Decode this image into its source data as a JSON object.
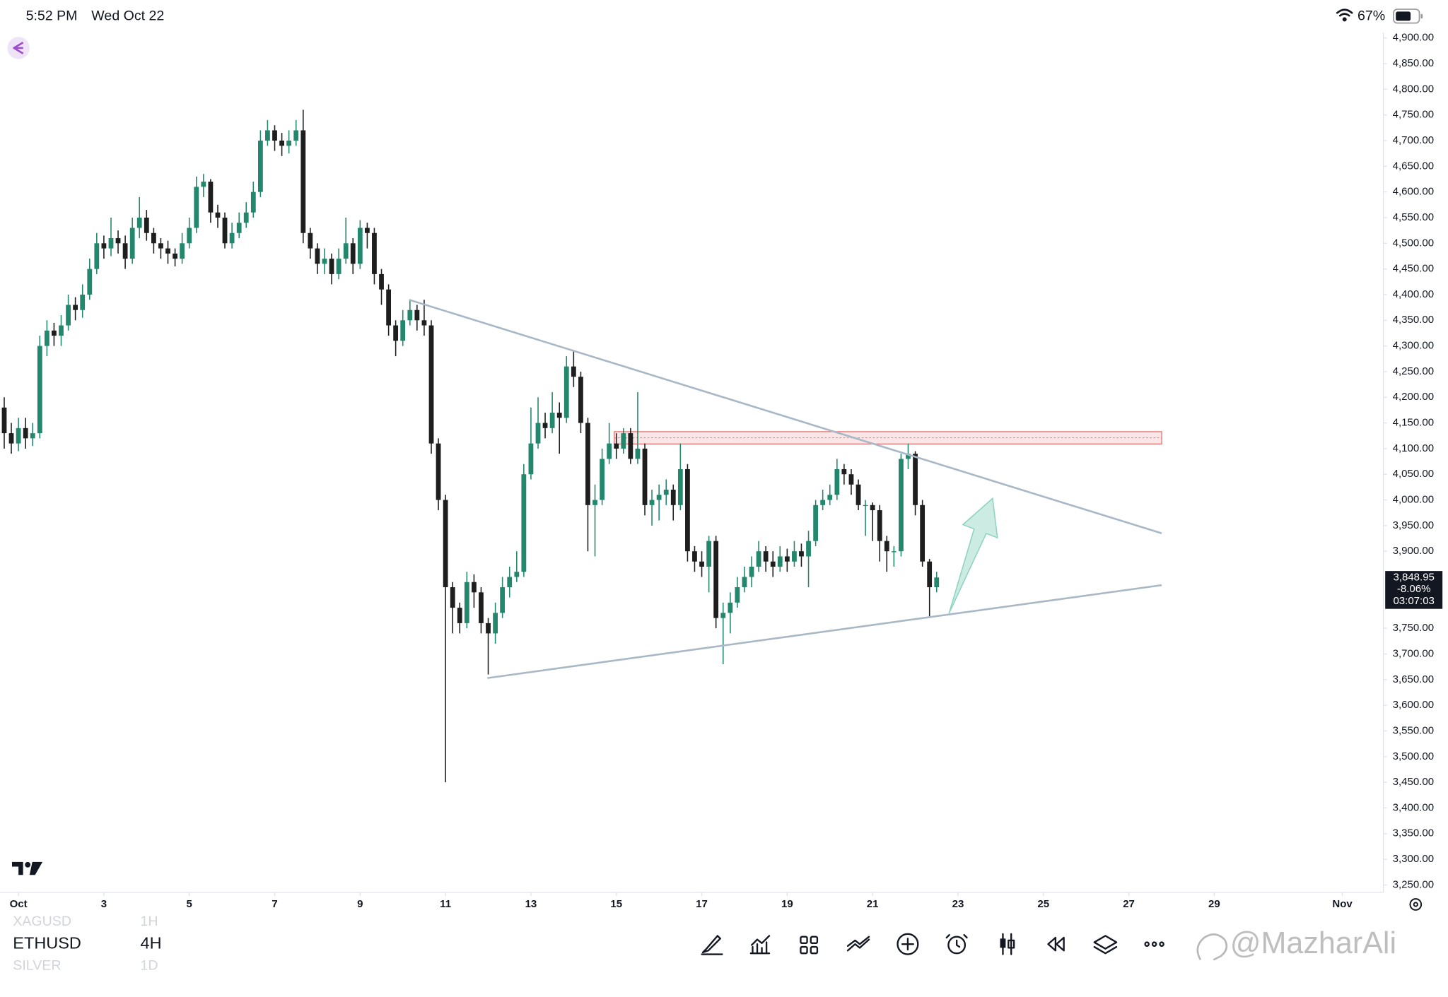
{
  "status_bar": {
    "time": "5:52 PM",
    "date": "Wed Oct 22",
    "battery": "67%"
  },
  "watchlist": [
    {
      "symbol": "XAGUSD",
      "interval": "1H"
    },
    {
      "symbol": "ETHUSD",
      "interval": "4H"
    },
    {
      "symbol": "SILVER",
      "interval": "1D"
    }
  ],
  "watermark": "@MazharAli",
  "chart_data": {
    "type": "candlestick",
    "up_color": "#22876c",
    "down_color": "#1e1e1e",
    "grid": false,
    "xlim": [
      0.568,
      32.96
    ],
    "xticks": [
      {
        "value": 1,
        "label": "Oct"
      },
      3,
      5,
      7,
      9,
      11,
      13,
      15,
      17,
      19,
      21,
      23,
      25,
      27,
      29,
      {
        "value": 32,
        "label": "Nov"
      }
    ],
    "ylim": [
      3239,
      4911
    ],
    "yticks": [
      {
        "value": 4900,
        "label": "4,900.00"
      },
      {
        "value": 4850,
        "label": "4,850.00"
      },
      {
        "value": 4800,
        "label": "4,800.00"
      },
      {
        "value": 4750,
        "label": "4,750.00"
      },
      {
        "value": 4700,
        "label": "4,700.00"
      },
      {
        "value": 4650,
        "label": "4,650.00"
      },
      {
        "value": 4600,
        "label": "4,600.00"
      },
      {
        "value": 4550,
        "label": "4,550.00"
      },
      {
        "value": 4500,
        "label": "4,500.00"
      },
      {
        "value": 4450,
        "label": "4,450.00"
      },
      {
        "value": 4400,
        "label": "4,400.00"
      },
      {
        "value": 4350,
        "label": "4,350.00"
      },
      {
        "value": 4300,
        "label": "4,300.00"
      },
      {
        "value": 4250,
        "label": "4,250.00"
      },
      {
        "value": 4200,
        "label": "4,200.00"
      },
      {
        "value": 4150,
        "label": "4,150.00"
      },
      {
        "value": 4100,
        "label": "4,100.00"
      },
      {
        "value": 4050,
        "label": "4,050.00"
      },
      {
        "value": 4000,
        "label": "4,000.00"
      },
      {
        "value": 3950,
        "label": "3,950.00"
      },
      {
        "value": 3900,
        "label": "3,900.00"
      },
      {
        "value": 3750,
        "label": "3,750.00"
      },
      {
        "value": 3700,
        "label": "3,700.00"
      },
      {
        "value": 3650,
        "label": "3,650.00"
      },
      {
        "value": 3600,
        "label": "3,600.00"
      },
      {
        "value": 3550,
        "label": "3,550.00"
      },
      {
        "value": 3500,
        "label": "3,500.00"
      },
      {
        "value": 3450,
        "label": "3,450.00"
      },
      {
        "value": 3400,
        "label": "3,400.00"
      },
      {
        "value": 3350,
        "label": "3,350.00"
      },
      {
        "value": 3300,
        "label": "3,300.00"
      },
      {
        "value": 3250,
        "label": "3,250.00"
      }
    ],
    "x": [
      0.667,
      0.833,
      1,
      1.167,
      1.333,
      1.5,
      1.667,
      1.833,
      2,
      2.167,
      2.333,
      2.5,
      2.667,
      2.833,
      3,
      3.167,
      3.333,
      3.5,
      3.667,
      3.833,
      4,
      4.167,
      4.333,
      4.5,
      4.667,
      4.833,
      5,
      5.167,
      5.333,
      5.5,
      5.667,
      5.833,
      6,
      6.167,
      6.333,
      6.5,
      6.667,
      6.833,
      7,
      7.167,
      7.333,
      7.5,
      7.667,
      7.833,
      8,
      8.167,
      8.333,
      8.5,
      8.667,
      8.833,
      9,
      9.167,
      9.333,
      9.5,
      9.667,
      9.833,
      10,
      10.167,
      10.333,
      10.5,
      10.667,
      10.833,
      11,
      11.167,
      11.333,
      11.5,
      11.667,
      11.833,
      12,
      12.167,
      12.333,
      12.5,
      12.667,
      12.833,
      13,
      13.167,
      13.333,
      13.5,
      13.667,
      13.833,
      14,
      14.167,
      14.333,
      14.5,
      14.667,
      14.833,
      15,
      15.167,
      15.333,
      15.5,
      15.667,
      15.833,
      16,
      16.167,
      16.333,
      16.5,
      16.667,
      16.833,
      17,
      17.167,
      17.333,
      17.5,
      17.667,
      17.833,
      18,
      18.167,
      18.333,
      18.5,
      18.667,
      18.833,
      19,
      19.167,
      19.333,
      19.5,
      19.667,
      19.833,
      20,
      20.167,
      20.333,
      20.5,
      20.667,
      20.833,
      21,
      21.167,
      21.333,
      21.5,
      21.667,
      21.833,
      22,
      22.167,
      22.333,
      22.5
    ],
    "open": [
      4180,
      4130,
      4110,
      4140,
      4120,
      4130,
      4300,
      4330,
      4320,
      4340,
      4380,
      4370,
      4400,
      4450,
      4500,
      4490,
      4510,
      4500,
      4470,
      4530,
      4550,
      4520,
      4500,
      4490,
      4480,
      4470,
      4500,
      4530,
      4610,
      4620,
      4560,
      4550,
      4500,
      4520,
      4540,
      4560,
      4600,
      4700,
      4720,
      4700,
      4690,
      4700,
      4720,
      4520,
      4490,
      4460,
      4470,
      4440,
      4470,
      4500,
      4460,
      4530,
      4520,
      4440,
      4410,
      4340,
      4310,
      4350,
      4370,
      4350,
      4340,
      4110,
      4000,
      3830,
      3790,
      3760,
      3840,
      3820,
      3760,
      3740,
      3780,
      3830,
      3850,
      3860,
      4050,
      4110,
      4150,
      4140,
      4170,
      4160,
      4260,
      4240,
      4150,
      3990,
      4000,
      4080,
      4110,
      4100,
      4130,
      4080,
      4100,
      3990,
      4000,
      4010,
      4020,
      3990,
      4060,
      3900,
      3880,
      3870,
      3920,
      3770,
      3780,
      3800,
      3830,
      3850,
      3870,
      3900,
      3880,
      3870,
      3890,
      3880,
      3900,
      3890,
      3920,
      3990,
      4000,
      4010,
      4060,
      4050,
      4030,
      3990,
      3990,
      3980,
      3920,
      3900,
      3900,
      4080,
      4090,
      3990,
      3880,
      3830
    ],
    "high": [
      4200,
      4150,
      4160,
      4160,
      4150,
      4320,
      4350,
      4345,
      4360,
      4400,
      4395,
      4420,
      4470,
      4520,
      4515,
      4550,
      4525,
      4515,
      4550,
      4590,
      4565,
      4530,
      4510,
      4505,
      4490,
      4520,
      4550,
      4630,
      4635,
      4625,
      4575,
      4560,
      4540,
      4560,
      4580,
      4620,
      4720,
      4740,
      4730,
      4715,
      4720,
      4740,
      4760,
      4530,
      4500,
      4490,
      4480,
      4490,
      4550,
      4510,
      4545,
      4540,
      4530,
      4450,
      4420,
      4350,
      4370,
      4390,
      4380,
      4390,
      4350,
      4120,
      4010,
      3840,
      3800,
      3860,
      3855,
      3830,
      3770,
      3800,
      3850,
      3870,
      3900,
      4070,
      4180,
      4200,
      4170,
      4210,
      4190,
      4280,
      4290,
      4250,
      4160,
      4030,
      4100,
      4150,
      4130,
      4140,
      4140,
      4210,
      4110,
      4020,
      4030,
      4040,
      4030,
      4110,
      4070,
      3910,
      3900,
      3930,
      3930,
      3800,
      3820,
      3850,
      3870,
      3890,
      3920,
      3910,
      3900,
      3910,
      3905,
      3920,
      3915,
      3940,
      4000,
      4020,
      4030,
      4080,
      4070,
      4060,
      4040,
      4000,
      3995,
      3990,
      3930,
      3910,
      4090,
      4110,
      4095,
      4000,
      3885,
      3860
    ],
    "low": [
      4100,
      4090,
      4095,
      4100,
      4105,
      4120,
      4280,
      4300,
      4300,
      4330,
      4350,
      4355,
      4390,
      4440,
      4470,
      4475,
      4480,
      4450,
      4460,
      4510,
      4505,
      4480,
      4470,
      4460,
      4455,
      4460,
      4490,
      4520,
      4590,
      4540,
      4530,
      4490,
      4490,
      4510,
      4530,
      4550,
      4590,
      4690,
      4680,
      4670,
      4675,
      4690,
      4500,
      4470,
      4440,
      4440,
      4420,
      4430,
      4460,
      4440,
      4450,
      4490,
      4420,
      4380,
      4320,
      4280,
      4300,
      4340,
      4330,
      4320,
      4090,
      3980,
      3450,
      3740,
      3740,
      3750,
      3790,
      3740,
      3660,
      3720,
      3770,
      3810,
      3840,
      3850,
      4040,
      4100,
      4120,
      4130,
      4090,
      4150,
      4220,
      4130,
      3900,
      3890,
      3990,
      4070,
      4080,
      4090,
      4070,
      4070,
      3970,
      3950,
      3960,
      3990,
      3960,
      3980,
      3880,
      3860,
      3850,
      3820,
      3750,
      3680,
      3740,
      3790,
      3820,
      3830,
      3860,
      3860,
      3850,
      3860,
      3860,
      3870,
      3870,
      3830,
      3910,
      3980,
      3990,
      4000,
      4030,
      4010,
      3980,
      3930,
      3920,
      3880,
      3860,
      3870,
      3890,
      4060,
      3970,
      3870,
      3770,
      3820
    ],
    "close": [
      4130,
      4110,
      4140,
      4120,
      4130,
      4300,
      4330,
      4320,
      4340,
      4380,
      4370,
      4400,
      4450,
      4500,
      4490,
      4510,
      4500,
      4470,
      4530,
      4550,
      4520,
      4500,
      4490,
      4480,
      4470,
      4500,
      4530,
      4610,
      4620,
      4560,
      4550,
      4500,
      4520,
      4540,
      4560,
      4600,
      4700,
      4720,
      4700,
      4690,
      4700,
      4720,
      4520,
      4490,
      4460,
      4470,
      4440,
      4470,
      4500,
      4460,
      4530,
      4520,
      4440,
      4410,
      4340,
      4310,
      4350,
      4370,
      4350,
      4340,
      4110,
      4000,
      3830,
      3790,
      3760,
      3840,
      3820,
      3760,
      3740,
      3780,
      3830,
      3850,
      3860,
      4050,
      4110,
      4150,
      4140,
      4170,
      4160,
      4260,
      4240,
      4150,
      3990,
      4000,
      4080,
      4110,
      4100,
      4130,
      4080,
      4100,
      3990,
      4000,
      4010,
      4020,
      3990,
      4060,
      3900,
      3880,
      3870,
      3920,
      3770,
      3780,
      3800,
      3830,
      3850,
      3870,
      3900,
      3880,
      3870,
      3890,
      3880,
      3900,
      3890,
      3920,
      3990,
      4000,
      4010,
      4060,
      4050,
      4030,
      3990,
      3990,
      3980,
      3920,
      3900,
      3900,
      4080,
      4090,
      3990,
      3880,
      3830,
      3848.95
    ],
    "price_box": {
      "label": "3,848.95",
      "change": "-8.06%",
      "countdown": "03:07:03"
    },
    "trendlines": [
      {
        "color": "#a9b8c6",
        "x": [
          10.146,
          27.77
        ],
        "y": [
          4390,
          3935
        ]
      },
      {
        "color": "#a9b8c6",
        "x": [
          11.98,
          27.77
        ],
        "y": [
          3653,
          3834
        ]
      }
    ],
    "zone": {
      "color": "#e57373",
      "x": [
        14.95,
        27.77
      ],
      "y": [
        4109,
        4133
      ]
    },
    "arrow": {
      "color": "#8fd3c1",
      "x": [
        22.79,
        23.81
      ],
      "y": [
        3779,
        4003
      ]
    }
  }
}
